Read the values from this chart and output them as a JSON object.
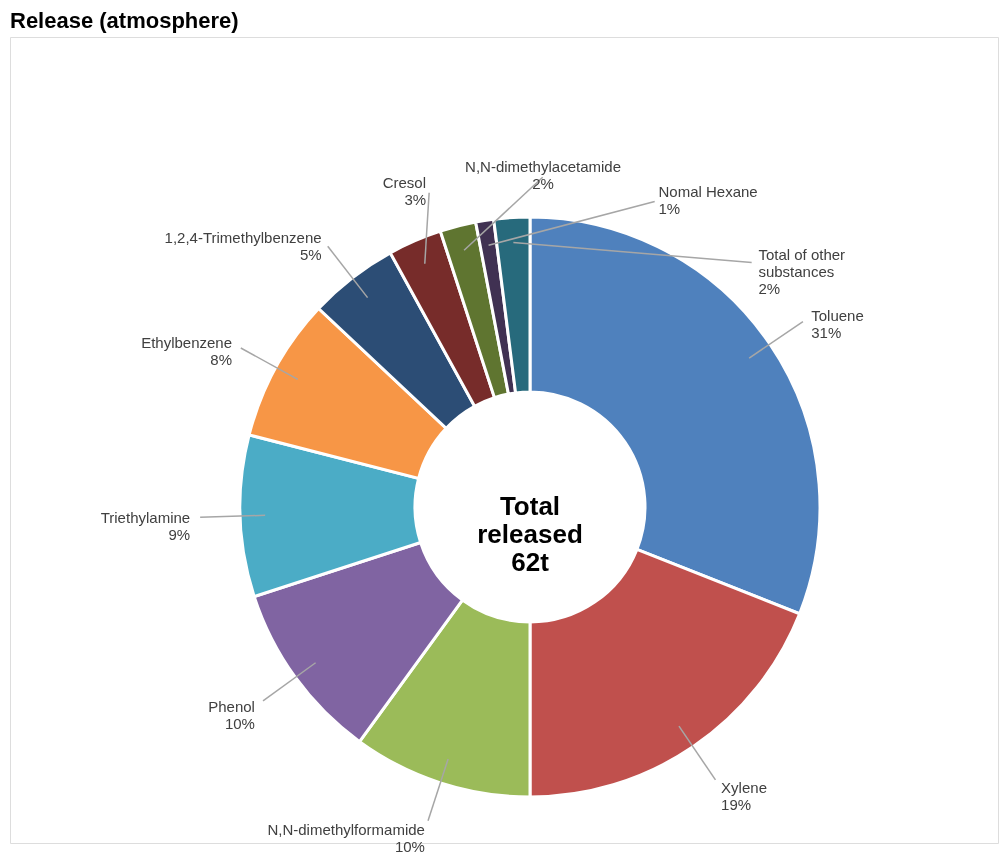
{
  "chart_data": {
    "type": "donut",
    "title": "Release (atmosphere)",
    "categories": [
      "Toluene",
      "Xylene",
      "N,N-dimethylformamide",
      "Phenol",
      "Triethylamine",
      "Ethylbenzene",
      "1,2,4-Trimethylbenzene",
      "Cresol",
      "N,N-dimethylacetamide",
      "Nomal Hexane",
      "Total of other substances"
    ],
    "values": [
      31,
      19,
      10,
      10,
      9,
      8,
      5,
      3,
      2,
      1,
      2
    ],
    "value_labels": [
      "31%",
      "19%",
      "10%",
      "10%",
      "9%",
      "8%",
      "5%",
      "3%",
      "2%",
      "1%",
      "2%"
    ],
    "colors": [
      "#4f81bd",
      "#c0504d",
      "#9bbb59",
      "#8064a2",
      "#4bacc6",
      "#f79646",
      "#2c4d75",
      "#772c2a",
      "#5f7530",
      "#403152",
      "#276a7c"
    ],
    "annotations": [
      "Total\nreleased\n62t"
    ],
    "legend": false
  }
}
